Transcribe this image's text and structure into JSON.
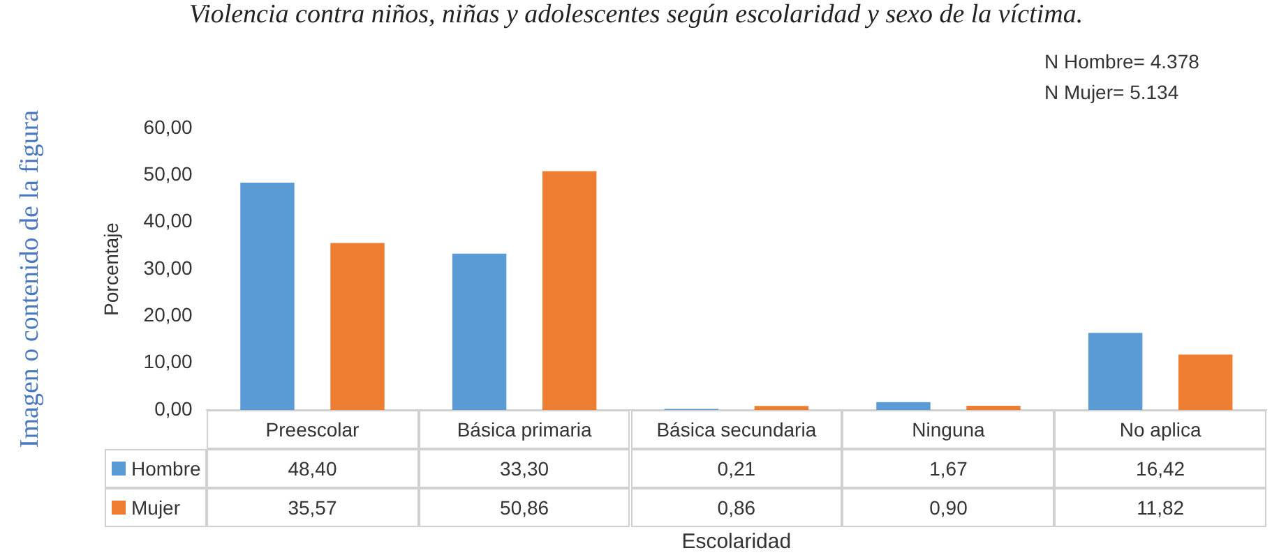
{
  "chart_data": {
    "type": "bar",
    "title": "Violencia contra niños, niñas y adolescentes según escolaridad y sexo de la víctima.",
    "xlabel": "Escolaridad",
    "ylabel": "Porcentaje",
    "categories": [
      "Preescolar",
      "Básica primaria",
      "Básica secundaria",
      "Ninguna",
      "No aplica"
    ],
    "series": [
      {
        "name": "Hombre",
        "color": "#5b9bd5",
        "values": [
          48.4,
          33.3,
          0.21,
          1.67,
          16.42
        ],
        "value_labels": [
          "48,40",
          "33,30",
          "0,21",
          "1,67",
          "16,42"
        ]
      },
      {
        "name": "Mujer",
        "color": "#ed7d31",
        "values": [
          35.57,
          50.86,
          0.86,
          0.9,
          11.82
        ],
        "value_labels": [
          "35,57",
          "50,86",
          "0,86",
          "0,90",
          "11,82"
        ]
      }
    ],
    "ylim": [
      0,
      60
    ],
    "yticks": [
      {
        "value": 0,
        "label": "0,00"
      },
      {
        "value": 10,
        "label": "10,00"
      },
      {
        "value": 20,
        "label": "20,00"
      },
      {
        "value": 30,
        "label": "30,00"
      },
      {
        "value": 40,
        "label": "40,00"
      },
      {
        "value": 50,
        "label": "50,00"
      },
      {
        "value": 60,
        "label": "60,00"
      }
    ],
    "grid": false,
    "legend": "bottom",
    "annotations": [
      "N Hombre= 4.378",
      "N Mujer= 5.134",
      "Imagen o contenido de la figura"
    ]
  }
}
